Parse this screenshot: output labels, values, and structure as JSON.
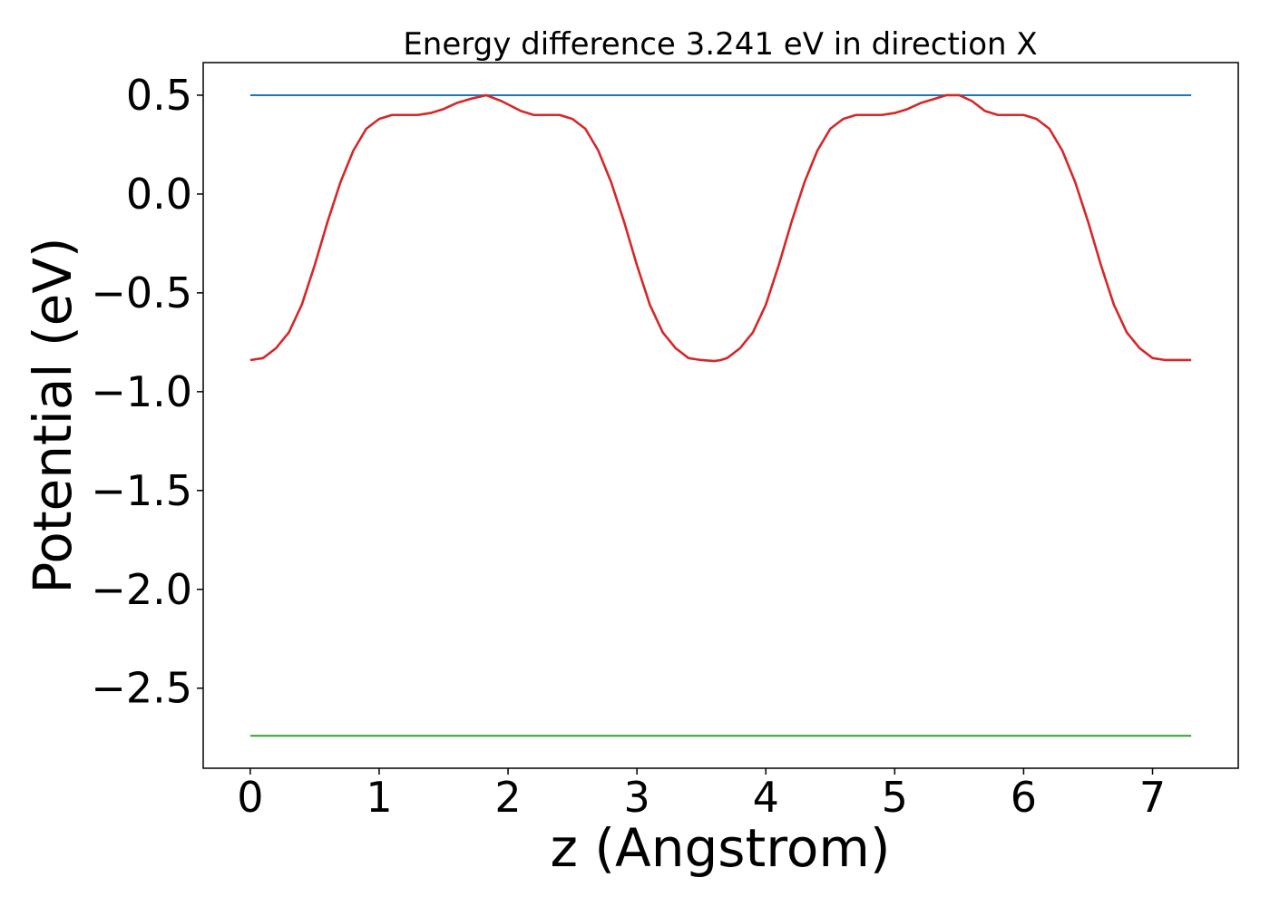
{
  "chart_data": {
    "type": "line",
    "title": "Energy difference 3.241 eV in direction X",
    "xlabel": "z (Angstrom)",
    "ylabel": "Potential (eV)",
    "xlim": [
      -0.365,
      7.665
    ],
    "ylim": [
      -2.905,
      0.665
    ],
    "xticks": [
      0,
      1,
      2,
      3,
      4,
      5,
      6,
      7
    ],
    "xtick_labels": [
      "0",
      "1",
      "2",
      "3",
      "4",
      "5",
      "6",
      "7"
    ],
    "yticks": [
      0.5,
      0.0,
      -0.5,
      -1.0,
      -1.5,
      -2.0,
      -2.5
    ],
    "ytick_labels": [
      "0.5",
      "0.0",
      "−0.5",
      "−1.0",
      "−1.5",
      "−2.0",
      "−2.5"
    ],
    "grid": false,
    "colors": {
      "max_line": "#1f77b4",
      "potential": "#d62728",
      "min_line": "#2ca02c"
    },
    "series": [
      {
        "key": "max_line",
        "x": [
          0,
          7.3
        ],
        "y": [
          0.5,
          0.5
        ]
      },
      {
        "key": "potential",
        "x": [
          0,
          0.1,
          0.2,
          0.3,
          0.4,
          0.5,
          0.6,
          0.7,
          0.8,
          0.9,
          1.0,
          1.1,
          1.2,
          1.3,
          1.4,
          1.5,
          1.6,
          1.7,
          1.83,
          1.95,
          2.1,
          2.2,
          2.3,
          2.4,
          2.5,
          2.6,
          2.7,
          2.8,
          2.9,
          3.0,
          3.1,
          3.2,
          3.3,
          3.4,
          3.5,
          3.6,
          3.65,
          3.7,
          3.8,
          3.9,
          4.0,
          4.1,
          4.2,
          4.3,
          4.4,
          4.5,
          4.6,
          4.7,
          4.8,
          4.9,
          5.0,
          5.1,
          5.2,
          5.3,
          5.4,
          5.5,
          5.6,
          5.7,
          5.8,
          5.9,
          6.0,
          6.1,
          6.2,
          6.3,
          6.4,
          6.5,
          6.6,
          6.7,
          6.8,
          6.9,
          7.0,
          7.1,
          7.2,
          7.3
        ],
        "y": [
          -0.84,
          -0.83,
          -0.78,
          -0.7,
          -0.56,
          -0.36,
          -0.14,
          0.06,
          0.22,
          0.33,
          0.38,
          0.4,
          0.4,
          0.4,
          0.41,
          0.43,
          0.46,
          0.48,
          0.5,
          0.47,
          0.42,
          0.4,
          0.4,
          0.4,
          0.38,
          0.33,
          0.22,
          0.06,
          -0.14,
          -0.36,
          -0.56,
          -0.7,
          -0.78,
          -0.83,
          -0.84,
          -0.845,
          -0.84,
          -0.83,
          -0.78,
          -0.7,
          -0.56,
          -0.36,
          -0.14,
          0.06,
          0.22,
          0.33,
          0.38,
          0.4,
          0.4,
          0.4,
          0.41,
          0.43,
          0.46,
          0.48,
          0.5,
          0.5,
          0.47,
          0.42,
          0.4,
          0.4,
          0.4,
          0.38,
          0.33,
          0.22,
          0.06,
          -0.14,
          -0.36,
          -0.56,
          -0.7,
          -0.78,
          -0.83,
          -0.84,
          -0.84,
          -0.84
        ]
      },
      {
        "key": "min_line",
        "x": [
          0,
          7.3
        ],
        "y": [
          -2.741,
          -2.741
        ]
      }
    ]
  }
}
